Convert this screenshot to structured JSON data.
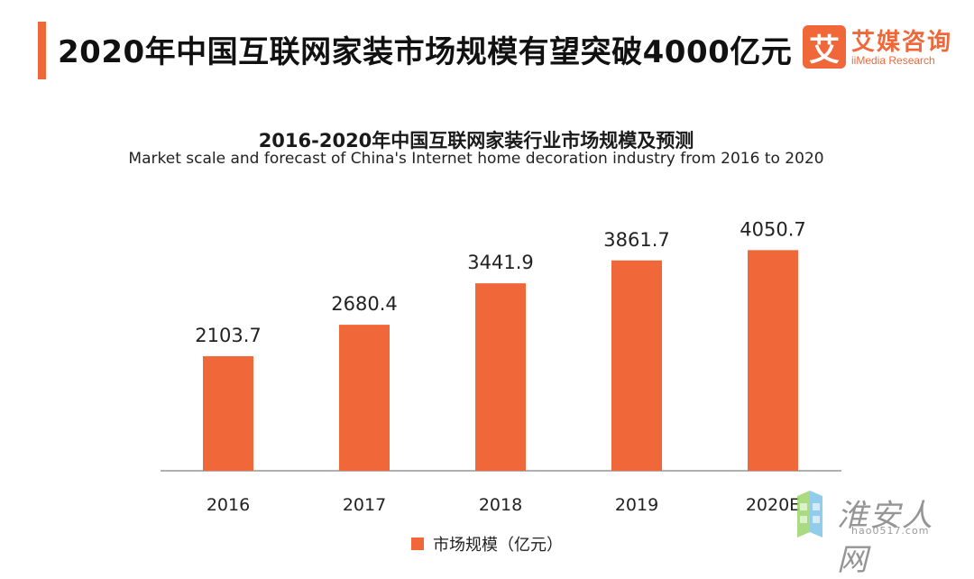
{
  "header": {
    "headline": "2020年中国互联网家装市场规模有望突破4000亿元"
  },
  "logo": {
    "mark": "艾",
    "cn": "艾媒咨询",
    "en": "iiMedia Research"
  },
  "watermark": {
    "cn": "淮安人网",
    "en": "hao0517.com"
  },
  "colors": {
    "bar": "#f0683a",
    "accent": "#f0683a",
    "axis": "#b0b0b0"
  },
  "chart_data": {
    "type": "bar",
    "title": "2016-2020年中国互联网家装行业市场规模及预测",
    "subtitle": "Market scale and forecast of China's Internet home decoration industry from 2016 to 2020",
    "categories": [
      "2016",
      "2017",
      "2018",
      "2019",
      "2020E"
    ],
    "series": [
      {
        "name": "市场规模（亿元）",
        "values": [
          2103.7,
          2680.4,
          3441.9,
          3861.7,
          4050.7
        ]
      }
    ],
    "xlabel": "",
    "ylabel": "",
    "grid": false,
    "legend_position": "bottom"
  }
}
